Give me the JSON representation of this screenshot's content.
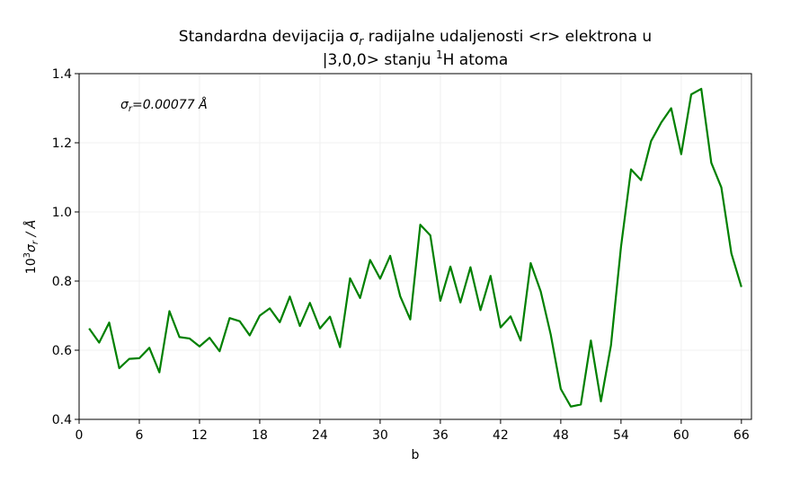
{
  "chart_data": {
    "type": "line",
    "title_line1": "Standardna devijacija σ",
    "title_line1_sub": "r",
    "title_line1_rest": " radijalne udaljenosti <r> elektrona u",
    "title_line2_pre": "|3,0,0> stanju ",
    "title_line2_sup": "1",
    "title_line2_post": "H atoma",
    "xlabel": "b",
    "ylabel_pre": "10",
    "ylabel_sup": "3",
    "ylabel_sigma": "σ",
    "ylabel_sub": "r",
    "ylabel_post": " / Å",
    "annotation_sigma": "σ",
    "annotation_sub": "r",
    "annotation_rest": "=0.00077 Å",
    "xlim": [
      0,
      67
    ],
    "ylim": [
      0.4,
      1.4
    ],
    "xticks": [
      0,
      6,
      12,
      18,
      24,
      30,
      36,
      42,
      48,
      54,
      60,
      66
    ],
    "yticks": [
      0.4,
      0.6,
      0.8,
      1.0,
      1.2,
      1.4
    ],
    "ytick_labels": [
      "0.4",
      "0.6",
      "0.8",
      "1.0",
      "1.2",
      "1.4"
    ],
    "grid": true,
    "color": "#008000",
    "series": [
      {
        "x": [
          1,
          2,
          3,
          4,
          5,
          6,
          7,
          8,
          9,
          10,
          11,
          12,
          13,
          14,
          15,
          16,
          17,
          18,
          19,
          20,
          21,
          22,
          23,
          24,
          25,
          26,
          27,
          28,
          29,
          30,
          31,
          32,
          33,
          34,
          35,
          36,
          37,
          38,
          39,
          40,
          41,
          42,
          43,
          44,
          45,
          46,
          47,
          48,
          49,
          50,
          51,
          52,
          53,
          54,
          55,
          56,
          57,
          58,
          59,
          60,
          61,
          62,
          63,
          64,
          65,
          66
        ],
        "y": [
          0.663,
          0.622,
          0.68,
          0.548,
          0.575,
          0.577,
          0.607,
          0.536,
          0.713,
          0.638,
          0.634,
          0.611,
          0.636,
          0.597,
          0.693,
          0.684,
          0.643,
          0.7,
          0.721,
          0.681,
          0.755,
          0.67,
          0.737,
          0.663,
          0.697,
          0.609,
          0.808,
          0.751,
          0.861,
          0.807,
          0.873,
          0.756,
          0.689,
          0.963,
          0.932,
          0.743,
          0.842,
          0.738,
          0.84,
          0.716,
          0.815,
          0.666,
          0.698,
          0.628,
          0.852,
          0.77,
          0.645,
          0.488,
          0.437,
          0.443,
          0.628,
          0.452,
          0.614,
          0.899,
          1.123,
          1.092,
          1.205,
          1.258,
          1.3,
          1.167,
          1.34,
          1.356,
          1.142,
          1.071,
          0.88,
          0.783
        ]
      }
    ]
  }
}
